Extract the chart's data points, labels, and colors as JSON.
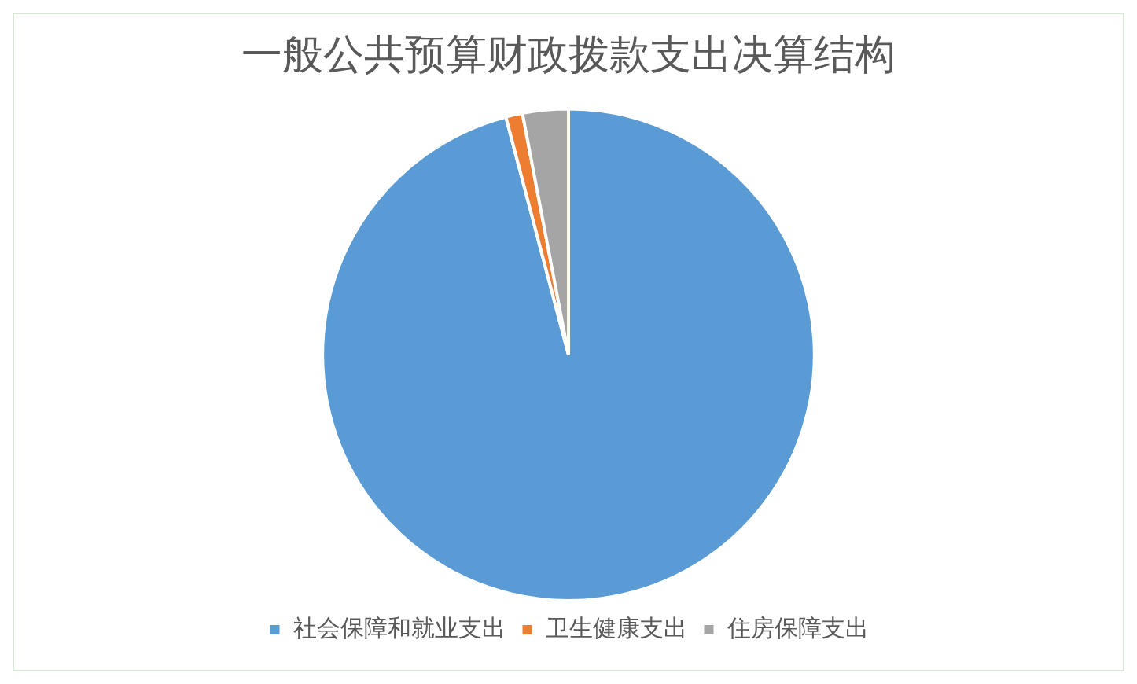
{
  "chart_data": {
    "type": "pie",
    "title": "一般公共预算财政拨款支出决算结构",
    "categories": [
      "社会保障和就业支出",
      "卫生健康支出",
      "住房保障支出"
    ],
    "values": [
      95.9,
      1.1,
      3.0
    ],
    "colors": [
      "#5b9bd5",
      "#ed7d31",
      "#a5a5a5"
    ],
    "legend": "bottom"
  }
}
